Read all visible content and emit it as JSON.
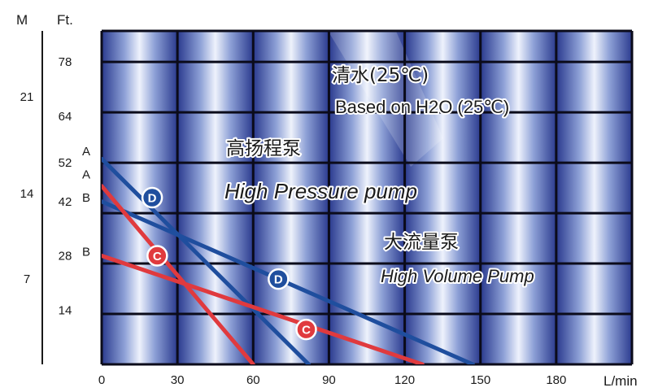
{
  "chart_data": {
    "type": "line",
    "x_unit": "L/min",
    "y_left_unit": "M",
    "y_right_unit": "Ft.",
    "xlim": [
      0,
      210
    ],
    "ylim_ft": [
      0,
      86
    ],
    "x_ticks": [
      0,
      30,
      60,
      90,
      120,
      150,
      180
    ],
    "x_tick_labels": [
      "0",
      "30",
      "60",
      "90",
      "120",
      "150",
      "180"
    ],
    "ft_ticks": [
      {
        "value": 78,
        "label": "78"
      },
      {
        "value": 64,
        "label": "64"
      },
      {
        "value": 52,
        "label": "52"
      },
      {
        "value": 42,
        "label": "42"
      },
      {
        "value": 28,
        "label": "28"
      },
      {
        "value": 14,
        "label": "14"
      }
    ],
    "m_ticks": [
      {
        "value": 69,
        "label": "21"
      },
      {
        "value": 44,
        "label": "14"
      },
      {
        "value": 22,
        "label": "7"
      }
    ],
    "endpoint_labels": [
      {
        "text": "A",
        "at_ft": 55
      },
      {
        "text": "A",
        "at_ft": 49
      },
      {
        "text": "B",
        "at_ft": 43
      },
      {
        "text": "B",
        "at_ft": 29
      }
    ],
    "series": [
      {
        "name": "D",
        "color": "#1f4e9e",
        "points": [
          [
            0,
            53
          ],
          [
            82,
            0
          ]
        ],
        "badge_at": [
          20,
          43
        ]
      },
      {
        "name": "D",
        "color": "#1f4e9e",
        "points": [
          [
            0,
            42
          ],
          [
            147,
            0
          ]
        ],
        "badge_at": [
          70,
          22
        ]
      },
      {
        "name": "C",
        "color": "#e03a3e",
        "points": [
          [
            0,
            46
          ],
          [
            60,
            0
          ]
        ],
        "badge_at": [
          22,
          28
        ]
      },
      {
        "name": "C",
        "color": "#e03a3e",
        "points": [
          [
            0,
            28
          ],
          [
            127,
            0
          ]
        ],
        "badge_at": [
          81,
          9
        ]
      }
    ],
    "grid": {
      "x_step": 30,
      "ft_step": 13
    },
    "annotations": [
      {
        "id": "water-cn",
        "text": "清水(25℃)"
      },
      {
        "id": "water-en",
        "text": "Based on H2O (25℃)"
      },
      {
        "id": "hp-cn",
        "text": "高扬程泵"
      },
      {
        "id": "hp-en",
        "text": "High Pressure pump"
      },
      {
        "id": "hv-cn",
        "text": "大流量泵"
      },
      {
        "id": "hv-en",
        "text": "High Volume Pump"
      }
    ]
  },
  "colors": {
    "grid_line": "#0b0b1a",
    "plot_bg_edge": "#28378a",
    "plot_bg_center": "#e8eefb",
    "blue": "#1f4e9e",
    "red": "#e03a3e"
  }
}
